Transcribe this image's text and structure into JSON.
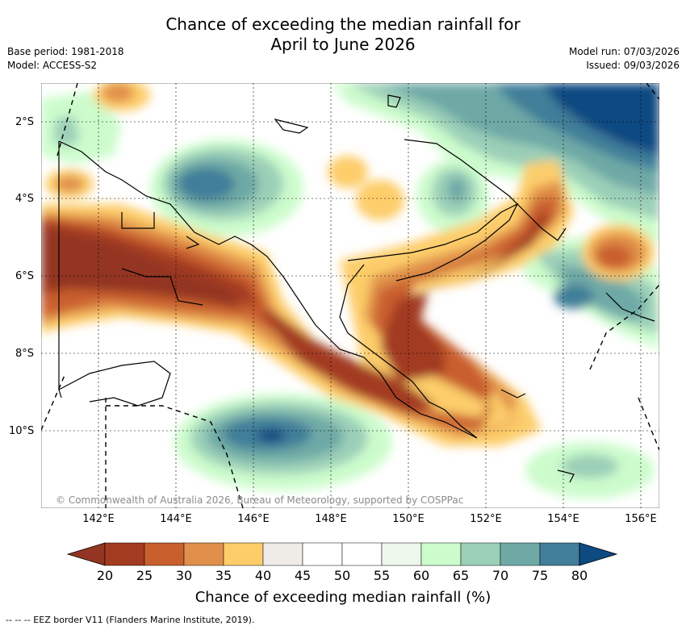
{
  "title": {
    "line1": "Chance of exceeding the median rainfall for",
    "line2": "April to June 2026"
  },
  "meta": {
    "base_period": "Base period: 1981-2018",
    "model": "Model: ACCESS-S2",
    "model_run": "Model run: 07/03/2026",
    "issued": "Issued: 09/03/2026"
  },
  "map": {
    "latitude_labels": [
      "2°S",
      "4°S",
      "6°S",
      "8°S",
      "10°S"
    ],
    "longitude_labels": [
      "142°E",
      "144°E",
      "146°E",
      "148°E",
      "150°E",
      "152°E",
      "154°E",
      "156°E"
    ],
    "credit": "© Commonwealth of Australia 2026, Bureau of Meteorology, supported by COSPPac"
  },
  "colorbar": {
    "ticks": [
      "20",
      "25",
      "30",
      "35",
      "40",
      "45",
      "50",
      "55",
      "60",
      "65",
      "70",
      "75",
      "80"
    ],
    "label": "Chance of exceeding median rainfall (%)",
    "colors": [
      "#a23b20",
      "#c95f2d",
      "#e0904a",
      "#fdcd6a",
      "#efebe6",
      "#ffffff",
      "#ffffff",
      "#eef7ec",
      "#ccfccc",
      "#9bcfb8",
      "#6ea9a6",
      "#417e99"
    ],
    "under_color": "#933522",
    "over_color": "#0d4a82"
  },
  "legend": {
    "eez": "--  --  -- EEZ border V11 (Flanders Marine Institute, 2019)."
  }
}
